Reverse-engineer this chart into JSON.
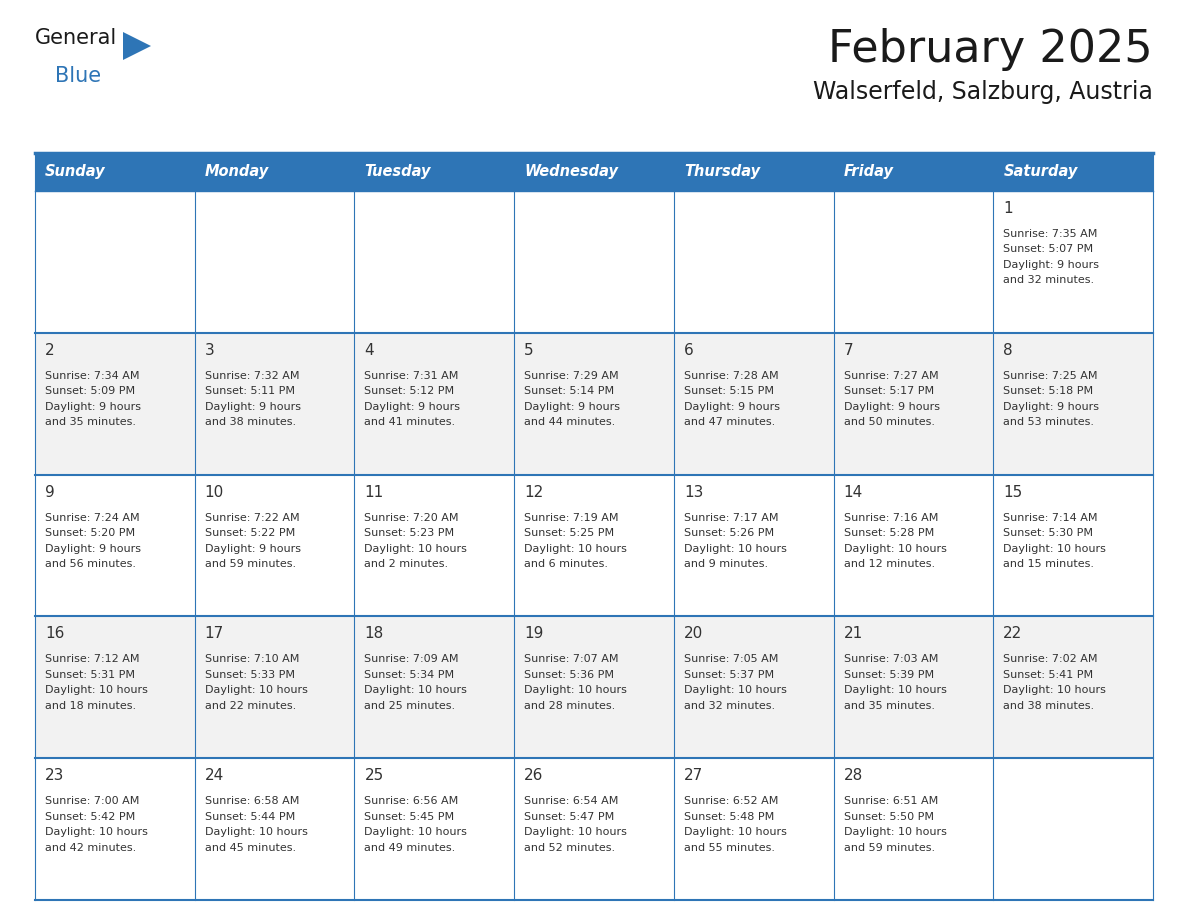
{
  "title": "February 2025",
  "subtitle": "Walserfeld, Salzburg, Austria",
  "header_bg": "#2E75B6",
  "header_text": "#FFFFFF",
  "row_bg_light": "#FFFFFF",
  "row_bg_dark": "#F2F2F2",
  "border_color": "#2E75B6",
  "text_color": "#333333",
  "day_headers": [
    "Sunday",
    "Monday",
    "Tuesday",
    "Wednesday",
    "Thursday",
    "Friday",
    "Saturday"
  ],
  "days": [
    {
      "date": 1,
      "col": 6,
      "row": 0,
      "sunrise": "7:35 AM",
      "sunset": "5:07 PM",
      "daylight": "9 hours and 32 minutes."
    },
    {
      "date": 2,
      "col": 0,
      "row": 1,
      "sunrise": "7:34 AM",
      "sunset": "5:09 PM",
      "daylight": "9 hours and 35 minutes."
    },
    {
      "date": 3,
      "col": 1,
      "row": 1,
      "sunrise": "7:32 AM",
      "sunset": "5:11 PM",
      "daylight": "9 hours and 38 minutes."
    },
    {
      "date": 4,
      "col": 2,
      "row": 1,
      "sunrise": "7:31 AM",
      "sunset": "5:12 PM",
      "daylight": "9 hours and 41 minutes."
    },
    {
      "date": 5,
      "col": 3,
      "row": 1,
      "sunrise": "7:29 AM",
      "sunset": "5:14 PM",
      "daylight": "9 hours and 44 minutes."
    },
    {
      "date": 6,
      "col": 4,
      "row": 1,
      "sunrise": "7:28 AM",
      "sunset": "5:15 PM",
      "daylight": "9 hours and 47 minutes."
    },
    {
      "date": 7,
      "col": 5,
      "row": 1,
      "sunrise": "7:27 AM",
      "sunset": "5:17 PM",
      "daylight": "9 hours and 50 minutes."
    },
    {
      "date": 8,
      "col": 6,
      "row": 1,
      "sunrise": "7:25 AM",
      "sunset": "5:18 PM",
      "daylight": "9 hours and 53 minutes."
    },
    {
      "date": 9,
      "col": 0,
      "row": 2,
      "sunrise": "7:24 AM",
      "sunset": "5:20 PM",
      "daylight": "9 hours and 56 minutes."
    },
    {
      "date": 10,
      "col": 1,
      "row": 2,
      "sunrise": "7:22 AM",
      "sunset": "5:22 PM",
      "daylight": "9 hours and 59 minutes."
    },
    {
      "date": 11,
      "col": 2,
      "row": 2,
      "sunrise": "7:20 AM",
      "sunset": "5:23 PM",
      "daylight": "10 hours and 2 minutes."
    },
    {
      "date": 12,
      "col": 3,
      "row": 2,
      "sunrise": "7:19 AM",
      "sunset": "5:25 PM",
      "daylight": "10 hours and 6 minutes."
    },
    {
      "date": 13,
      "col": 4,
      "row": 2,
      "sunrise": "7:17 AM",
      "sunset": "5:26 PM",
      "daylight": "10 hours and 9 minutes."
    },
    {
      "date": 14,
      "col": 5,
      "row": 2,
      "sunrise": "7:16 AM",
      "sunset": "5:28 PM",
      "daylight": "10 hours and 12 minutes."
    },
    {
      "date": 15,
      "col": 6,
      "row": 2,
      "sunrise": "7:14 AM",
      "sunset": "5:30 PM",
      "daylight": "10 hours and 15 minutes."
    },
    {
      "date": 16,
      "col": 0,
      "row": 3,
      "sunrise": "7:12 AM",
      "sunset": "5:31 PM",
      "daylight": "10 hours and 18 minutes."
    },
    {
      "date": 17,
      "col": 1,
      "row": 3,
      "sunrise": "7:10 AM",
      "sunset": "5:33 PM",
      "daylight": "10 hours and 22 minutes."
    },
    {
      "date": 18,
      "col": 2,
      "row": 3,
      "sunrise": "7:09 AM",
      "sunset": "5:34 PM",
      "daylight": "10 hours and 25 minutes."
    },
    {
      "date": 19,
      "col": 3,
      "row": 3,
      "sunrise": "7:07 AM",
      "sunset": "5:36 PM",
      "daylight": "10 hours and 28 minutes."
    },
    {
      "date": 20,
      "col": 4,
      "row": 3,
      "sunrise": "7:05 AM",
      "sunset": "5:37 PM",
      "daylight": "10 hours and 32 minutes."
    },
    {
      "date": 21,
      "col": 5,
      "row": 3,
      "sunrise": "7:03 AM",
      "sunset": "5:39 PM",
      "daylight": "10 hours and 35 minutes."
    },
    {
      "date": 22,
      "col": 6,
      "row": 3,
      "sunrise": "7:02 AM",
      "sunset": "5:41 PM",
      "daylight": "10 hours and 38 minutes."
    },
    {
      "date": 23,
      "col": 0,
      "row": 4,
      "sunrise": "7:00 AM",
      "sunset": "5:42 PM",
      "daylight": "10 hours and 42 minutes."
    },
    {
      "date": 24,
      "col": 1,
      "row": 4,
      "sunrise": "6:58 AM",
      "sunset": "5:44 PM",
      "daylight": "10 hours and 45 minutes."
    },
    {
      "date": 25,
      "col": 2,
      "row": 4,
      "sunrise": "6:56 AM",
      "sunset": "5:45 PM",
      "daylight": "10 hours and 49 minutes."
    },
    {
      "date": 26,
      "col": 3,
      "row": 4,
      "sunrise": "6:54 AM",
      "sunset": "5:47 PM",
      "daylight": "10 hours and 52 minutes."
    },
    {
      "date": 27,
      "col": 4,
      "row": 4,
      "sunrise": "6:52 AM",
      "sunset": "5:48 PM",
      "daylight": "10 hours and 55 minutes."
    },
    {
      "date": 28,
      "col": 5,
      "row": 4,
      "sunrise": "6:51 AM",
      "sunset": "5:50 PM",
      "daylight": "10 hours and 59 minutes."
    }
  ]
}
